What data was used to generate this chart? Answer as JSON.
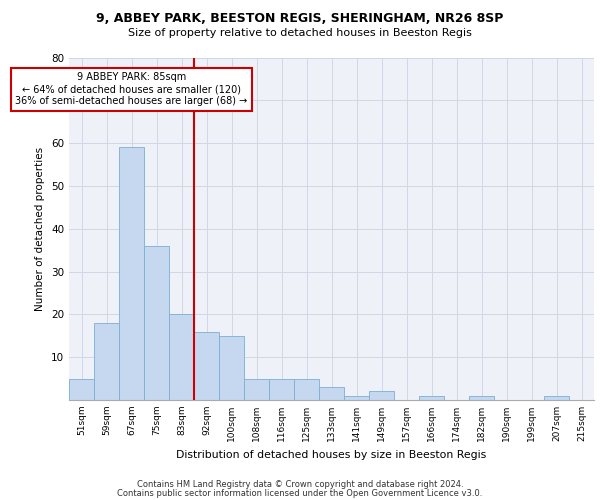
{
  "title1": "9, ABBEY PARK, BEESTON REGIS, SHERINGHAM, NR26 8SP",
  "title2": "Size of property relative to detached houses in Beeston Regis",
  "xlabel": "Distribution of detached houses by size in Beeston Regis",
  "ylabel": "Number of detached properties",
  "bar_labels": [
    "51sqm",
    "59sqm",
    "67sqm",
    "75sqm",
    "83sqm",
    "92sqm",
    "100sqm",
    "108sqm",
    "116sqm",
    "125sqm",
    "133sqm",
    "141sqm",
    "149sqm",
    "157sqm",
    "166sqm",
    "174sqm",
    "182sqm",
    "190sqm",
    "199sqm",
    "207sqm",
    "215sqm"
  ],
  "bar_values": [
    5,
    18,
    59,
    36,
    20,
    16,
    15,
    5,
    5,
    5,
    3,
    1,
    2,
    0,
    1,
    0,
    1,
    0,
    0,
    1,
    0
  ],
  "bar_color": "#c5d8f0",
  "bar_edge_color": "#7bafd4",
  "annotation_line1": "9 ABBEY PARK: 85sqm",
  "annotation_line2": "← 64% of detached houses are smaller (120)",
  "annotation_line3": "36% of semi-detached houses are larger (68) →",
  "vline_color": "#cc0000",
  "annotation_box_color": "#cc0000",
  "ylim": [
    0,
    80
  ],
  "yticks": [
    0,
    10,
    20,
    30,
    40,
    50,
    60,
    70,
    80
  ],
  "grid_color": "#d0d8e8",
  "background_color": "#eef2f8",
  "footer1": "Contains HM Land Registry data © Crown copyright and database right 2024.",
  "footer2": "Contains public sector information licensed under the Open Government Licence v3.0."
}
